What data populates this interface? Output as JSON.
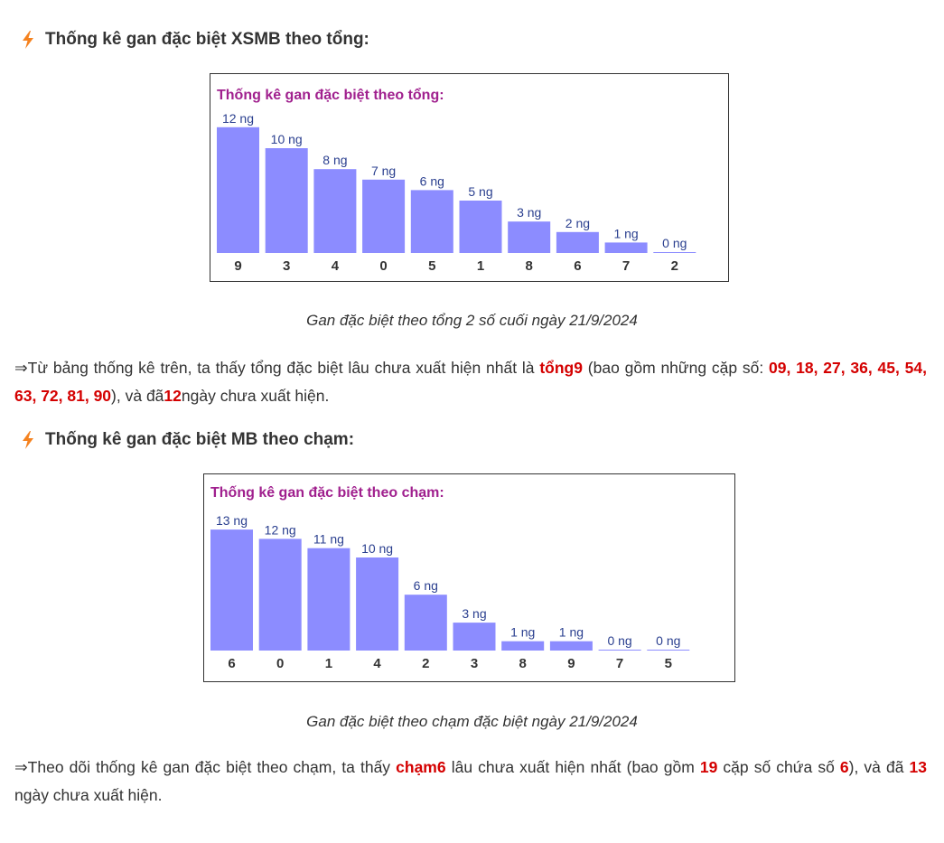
{
  "section1": {
    "heading": "Thống kê gan đặc biệt XSMB theo tổng:",
    "caption": "Gan đặc biệt theo tổng 2 số cuối ngày 21/9/2024",
    "para": {
      "t1": "⇒Từ bảng thống kê trên, ta thấy tổng đặc biệt lâu chưa xuất hiện nhất là ",
      "h1": "tổng9",
      "t2": " (bao gồm những cặp số: ",
      "h2": "09, 18, 27, 36, 45, 54, 63, 72, 81, 90",
      "t3": "), và đã",
      "h3": "12",
      "t4": "ngày chưa xuất hiện."
    }
  },
  "section2": {
    "heading": "Thống kê gan đặc biệt MB theo chạm:",
    "caption": "Gan đặc biệt theo chạm đặc biệt ngày 21/9/2024",
    "para": {
      "t1": "⇒Theo dõi thống kê gan đặc biệt theo chạm, ta thấy ",
      "h1": "chạm6",
      "t2": " lâu chưa xuất hiện nhất (bao gồm ",
      "h2": "19",
      "t3": " cặp số chứa số ",
      "h3": "6",
      "t4": "), và đã ",
      "h4": "13",
      "t5": " ngày chưa xuất hiện."
    }
  },
  "colors": {
    "bar": "#8c8cff",
    "chart_title": "#a0208e",
    "label": "#2a3f8f",
    "highlight": "#d40000",
    "bolt": "#f5821f"
  },
  "icons": {
    "heading": "lightning-bolt-icon"
  },
  "chart_data": [
    {
      "type": "bar",
      "title": "Thống kê gan đặc biệt theo tổng:",
      "categories": [
        "9",
        "3",
        "4",
        "0",
        "5",
        "1",
        "8",
        "6",
        "7",
        "2"
      ],
      "values": [
        12,
        10,
        8,
        7,
        6,
        5,
        3,
        2,
        1,
        0
      ],
      "value_labels": [
        "12 ng",
        "10 ng",
        "8 ng",
        "7 ng",
        "6 ng",
        "5 ng",
        "3 ng",
        "2 ng",
        "1 ng",
        "0 ng"
      ],
      "ylim": [
        0,
        12
      ],
      "grid": false,
      "legend": "none"
    },
    {
      "type": "bar",
      "title": "Thống kê gan đặc biệt theo chạm:",
      "categories": [
        "6",
        "0",
        "1",
        "4",
        "2",
        "3",
        "8",
        "9",
        "7",
        "5"
      ],
      "values": [
        13,
        12,
        11,
        10,
        6,
        3,
        1,
        1,
        0,
        0
      ],
      "value_labels": [
        "13 ng",
        "12 ng",
        "11 ng",
        "10 ng",
        "6 ng",
        "3 ng",
        "1 ng",
        "1 ng",
        "0 ng",
        "0 ng"
      ],
      "ylim": [
        0,
        13
      ],
      "grid": false,
      "legend": "none"
    }
  ]
}
